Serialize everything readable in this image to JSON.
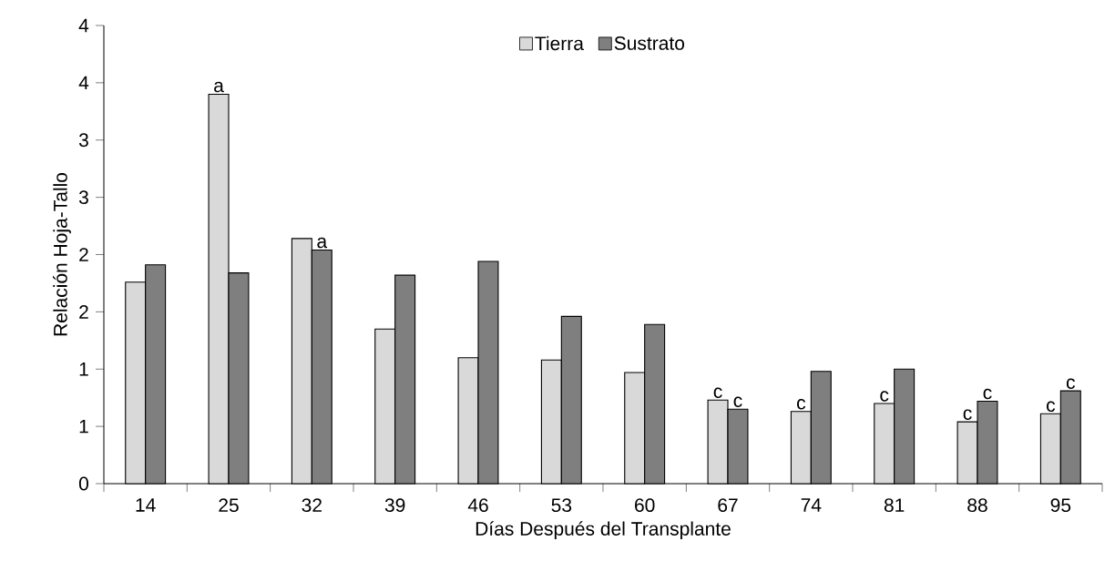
{
  "chart_data": {
    "type": "bar",
    "xlabel": "Días Después del Transplante",
    "ylabel": "Relación Hoja-Tallo",
    "categories": [
      "14",
      "25",
      "32",
      "39",
      "46",
      "53",
      "60",
      "67",
      "74",
      "81",
      "88",
      "95"
    ],
    "series": [
      {
        "name": "Tierra",
        "color": "#d9d9d9",
        "values": [
          1.76,
          3.4,
          2.14,
          1.35,
          1.1,
          1.08,
          0.97,
          0.73,
          0.63,
          0.7,
          0.54,
          0.61
        ]
      },
      {
        "name": "Sustrato",
        "color": "#7f7f7f",
        "values": [
          1.91,
          1.84,
          2.04,
          1.82,
          1.94,
          1.46,
          1.39,
          0.65,
          0.98,
          1.0,
          0.72,
          0.81
        ]
      }
    ],
    "ylim": [
      0,
      4
    ],
    "yticks": [
      {
        "value": 0,
        "label": "0"
      },
      {
        "value": 0.5,
        "label": "1"
      },
      {
        "value": 1,
        "label": "1"
      },
      {
        "value": 1.5,
        "label": "2"
      },
      {
        "value": 2,
        "label": "2"
      },
      {
        "value": 2.5,
        "label": "3"
      },
      {
        "value": 3,
        "label": "3"
      },
      {
        "value": 3.5,
        "label": "4"
      },
      {
        "value": 4,
        "label": "4"
      }
    ],
    "legend": "top",
    "annotations": [
      {
        "text": "a",
        "x": "25",
        "y": 3.4
      },
      {
        "text": "a",
        "x": "32",
        "y": 2.04
      },
      {
        "text": "c",
        "x": "67",
        "y": 0.73
      },
      {
        "text": "c",
        "x": "67",
        "y": 0.65
      },
      {
        "text": "c",
        "x": "74",
        "y": 0.63
      },
      {
        "text": "c",
        "x": "81",
        "y": 0.7
      },
      {
        "text": "c",
        "x": "88",
        "y": 0.54
      },
      {
        "text": "c",
        "x": "88",
        "y": 0.72
      },
      {
        "text": "c",
        "x": "95",
        "y": 0.61
      },
      {
        "text": "c",
        "x": "95",
        "y": 0.81
      }
    ]
  }
}
